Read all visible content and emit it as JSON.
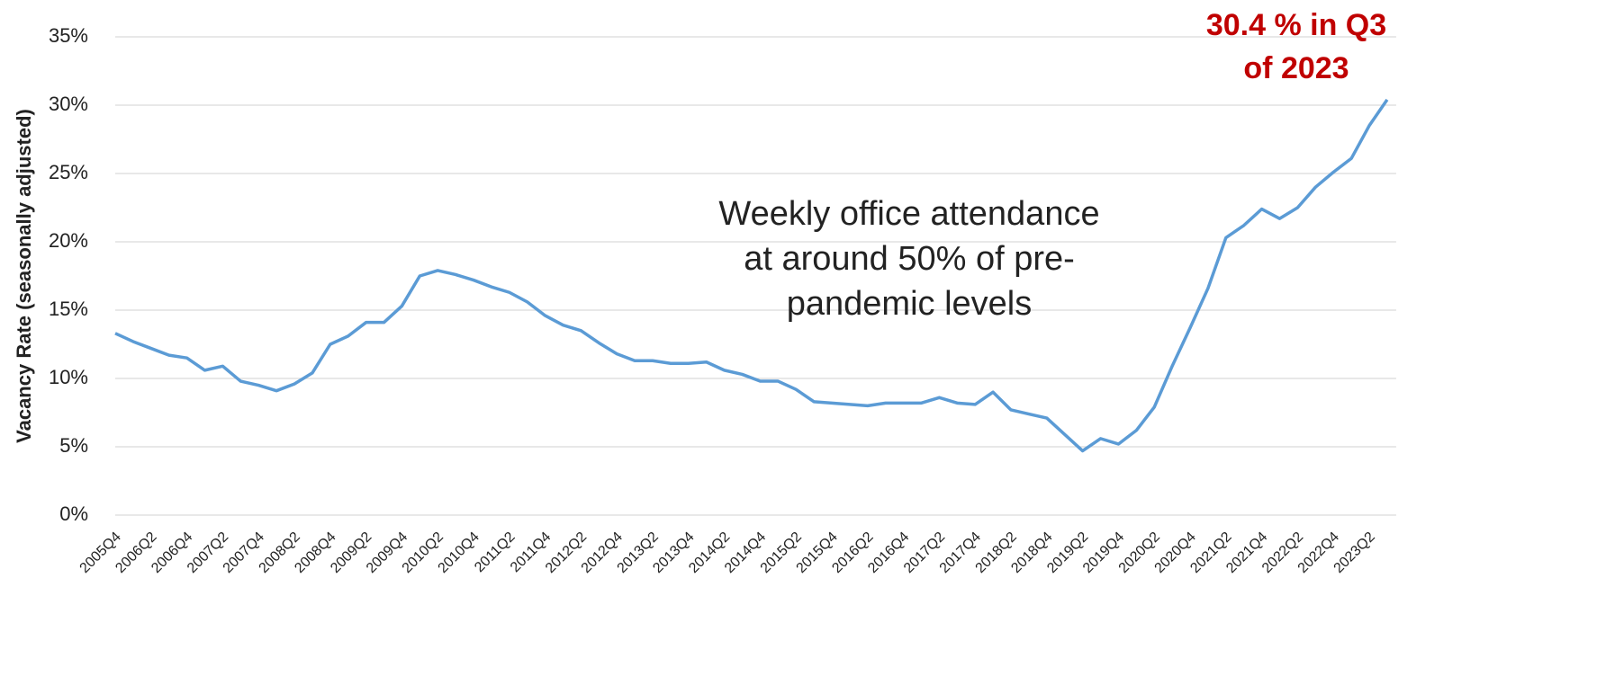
{
  "chart_data": {
    "type": "line",
    "y_label": "Vacancy Rate (seasonally adjusted)",
    "annotations": [
      {
        "lines": [
          "Weekly office attendance",
          "at around 50% of pre-",
          "pandemic levels"
        ]
      },
      {
        "lines": [
          "30.4 % in Q3",
          "of 2023"
        ],
        "color": "#c00000"
      }
    ],
    "categories": [
      "2005Q4",
      null,
      "2006Q2",
      null,
      "2006Q4",
      null,
      "2007Q2",
      null,
      "2007Q4",
      null,
      "2008Q2",
      null,
      "2008Q4",
      null,
      "2009Q2",
      null,
      "2009Q4",
      null,
      "2010Q2",
      null,
      "2010Q4",
      null,
      "2011Q2",
      null,
      "2011Q4",
      null,
      "2012Q2",
      null,
      "2012Q4",
      null,
      "2013Q2",
      null,
      "2013Q4",
      null,
      "2014Q2",
      null,
      "2014Q4",
      null,
      "2015Q2",
      null,
      "2015Q4",
      null,
      "2016Q2",
      null,
      "2016Q4",
      null,
      "2017Q2",
      null,
      "2017Q4",
      null,
      "2018Q2",
      null,
      "2018Q4",
      null,
      "2019Q2",
      null,
      "2019Q4",
      null,
      "2020Q2",
      null,
      "2020Q4",
      null,
      "2021Q2",
      null,
      "2021Q4",
      null,
      "2022Q2",
      null,
      "2022Q4",
      null,
      "2023Q2",
      null
    ],
    "series": [
      {
        "color": "#5b9bd5",
        "values": [
          13.3,
          12.7,
          12.2,
          11.7,
          11.5,
          10.6,
          10.9,
          9.8,
          9.5,
          9.1,
          9.6,
          10.4,
          12.5,
          13.1,
          14.1,
          14.1,
          15.3,
          17.5,
          17.9,
          17.6,
          17.2,
          16.7,
          16.3,
          15.6,
          14.6,
          13.9,
          13.5,
          12.6,
          11.8,
          11.3,
          11.3,
          11.1,
          11.1,
          11.2,
          10.6,
          10.3,
          9.8,
          9.8,
          9.2,
          8.3,
          8.2,
          8.1,
          8.0,
          8.2,
          8.2,
          8.2,
          8.6,
          8.2,
          8.1,
          9.0,
          7.7,
          7.4,
          7.1,
          5.9,
          4.7,
          5.6,
          5.2,
          6.2,
          7.9,
          10.9,
          13.7,
          16.6,
          20.3,
          21.2,
          22.4,
          21.7,
          22.5,
          24.0,
          25.1,
          26.1,
          28.5,
          30.4
        ]
      }
    ],
    "ylim": [
      0,
      35
    ],
    "yticks": [
      {
        "value": 0,
        "label": "0%"
      },
      {
        "value": 5,
        "label": "5%"
      },
      {
        "value": 10,
        "label": "10%"
      },
      {
        "value": 15,
        "label": "15%"
      },
      {
        "value": 20,
        "label": "20%"
      },
      {
        "value": 25,
        "label": "25%"
      },
      {
        "value": 30,
        "label": "30%"
      },
      {
        "value": 35,
        "label": "35%"
      }
    ],
    "grid": true
  }
}
